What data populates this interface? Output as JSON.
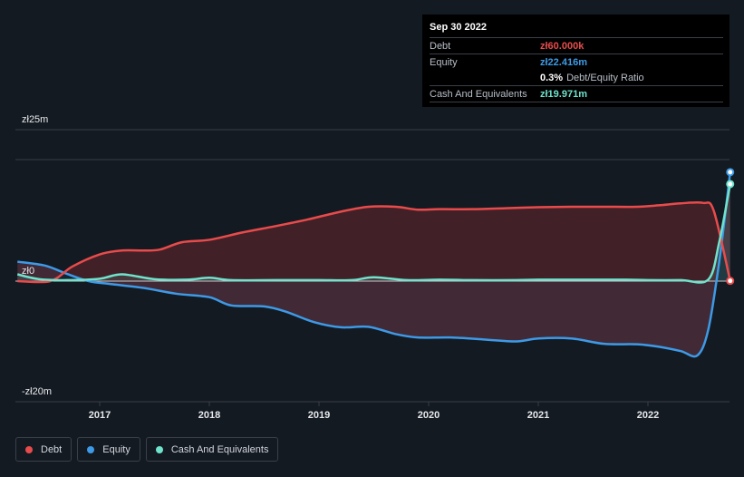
{
  "chart_data": {
    "type": "area",
    "title": "",
    "xlabel": "",
    "ylabel": "",
    "ylim": [
      -20,
      25
    ],
    "y_tick_labels": [
      {
        "value": 25,
        "label": "zł25m"
      },
      {
        "value": 0,
        "label": "zł0"
      },
      {
        "value": -20,
        "label": "-zł20m"
      }
    ],
    "x_ticks": [
      2017,
      2018,
      2019,
      2020,
      2021,
      2022
    ],
    "xlim": [
      2016.25,
      2022.75
    ],
    "series": [
      {
        "name": "Debt",
        "color": "#e84b4b",
        "points": [
          [
            2016.25,
            0
          ],
          [
            2016.55,
            0
          ],
          [
            2016.75,
            3
          ],
          [
            2017.0,
            5.5
          ],
          [
            2017.2,
            6.3
          ],
          [
            2017.4,
            6.3
          ],
          [
            2017.55,
            6.5
          ],
          [
            2017.75,
            8
          ],
          [
            2018.0,
            8.5
          ],
          [
            2018.3,
            10
          ],
          [
            2018.6,
            11.3
          ],
          [
            2018.9,
            12.7
          ],
          [
            2019.2,
            14.3
          ],
          [
            2019.45,
            15.3
          ],
          [
            2019.7,
            15.3
          ],
          [
            2019.9,
            14.7
          ],
          [
            2020.1,
            14.8
          ],
          [
            2020.4,
            14.8
          ],
          [
            2020.7,
            15.0
          ],
          [
            2021.0,
            15.2
          ],
          [
            2021.3,
            15.3
          ],
          [
            2021.6,
            15.3
          ],
          [
            2021.9,
            15.3
          ],
          [
            2022.1,
            15.6
          ],
          [
            2022.3,
            16.0
          ],
          [
            2022.5,
            16.1
          ],
          [
            2022.6,
            14.5
          ],
          [
            2022.75,
            0.06
          ]
        ]
      },
      {
        "name": "Equity",
        "color": "#3d9ae6",
        "points": [
          [
            2016.25,
            4
          ],
          [
            2016.5,
            3.2
          ],
          [
            2016.7,
            1.5
          ],
          [
            2016.9,
            0
          ],
          [
            2017.1,
            -0.6
          ],
          [
            2017.4,
            -1.4
          ],
          [
            2017.7,
            -2.6
          ],
          [
            2018.0,
            -3.3
          ],
          [
            2018.2,
            -5.0
          ],
          [
            2018.5,
            -5.2
          ],
          [
            2018.7,
            -6.3
          ],
          [
            2018.95,
            -8.4
          ],
          [
            2019.2,
            -9.5
          ],
          [
            2019.45,
            -9.4
          ],
          [
            2019.7,
            -10.9
          ],
          [
            2019.9,
            -11.6
          ],
          [
            2020.2,
            -11.6
          ],
          [
            2020.5,
            -12.0
          ],
          [
            2020.8,
            -12.4
          ],
          [
            2021.0,
            -11.8
          ],
          [
            2021.3,
            -11.8
          ],
          [
            2021.6,
            -12.9
          ],
          [
            2021.9,
            -13.0
          ],
          [
            2022.1,
            -13.5
          ],
          [
            2022.3,
            -14.4
          ],
          [
            2022.45,
            -15.3
          ],
          [
            2022.55,
            -10
          ],
          [
            2022.65,
            4
          ],
          [
            2022.75,
            22.416
          ]
        ]
      },
      {
        "name": "Cash And Equivalents",
        "color": "#6fe3cc",
        "points": [
          [
            2016.25,
            1.4
          ],
          [
            2016.45,
            0.4
          ],
          [
            2016.7,
            0.2
          ],
          [
            2017.0,
            0.5
          ],
          [
            2017.2,
            1.4
          ],
          [
            2017.5,
            0.4
          ],
          [
            2017.8,
            0.3
          ],
          [
            2018.0,
            0.7
          ],
          [
            2018.2,
            0.2
          ],
          [
            2018.6,
            0.2
          ],
          [
            2019.0,
            0.2
          ],
          [
            2019.3,
            0.2
          ],
          [
            2019.5,
            0.8
          ],
          [
            2019.8,
            0.2
          ],
          [
            2020.1,
            0.3
          ],
          [
            2020.4,
            0.2
          ],
          [
            2020.8,
            0.2
          ],
          [
            2021.0,
            0.3
          ],
          [
            2021.4,
            0.3
          ],
          [
            2021.8,
            0.3
          ],
          [
            2022.0,
            0.2
          ],
          [
            2022.3,
            0.2
          ],
          [
            2022.55,
            0.3
          ],
          [
            2022.65,
            8
          ],
          [
            2022.75,
            19.971
          ]
        ]
      }
    ],
    "legend_position": "bottom-left"
  },
  "tooltip": {
    "date": "Sep 30 2022",
    "debt_label": "Debt",
    "debt_value": "zł60.000k",
    "equity_label": "Equity",
    "equity_value": "zł22.416m",
    "ratio_value": "0.3%",
    "ratio_label": "Debt/Equity Ratio",
    "cash_label": "Cash And Equivalents",
    "cash_value": "zł19.971m"
  },
  "legend": [
    {
      "label": "Debt",
      "color": "#e84b4b"
    },
    {
      "label": "Equity",
      "color": "#3d9ae6"
    },
    {
      "label": "Cash And Equivalents",
      "color": "#6fe3cc"
    }
  ],
  "colors": {
    "debt_fill": "#4a2228",
    "grid": "#3a3f47",
    "axis_text": "#e6e8eb"
  }
}
